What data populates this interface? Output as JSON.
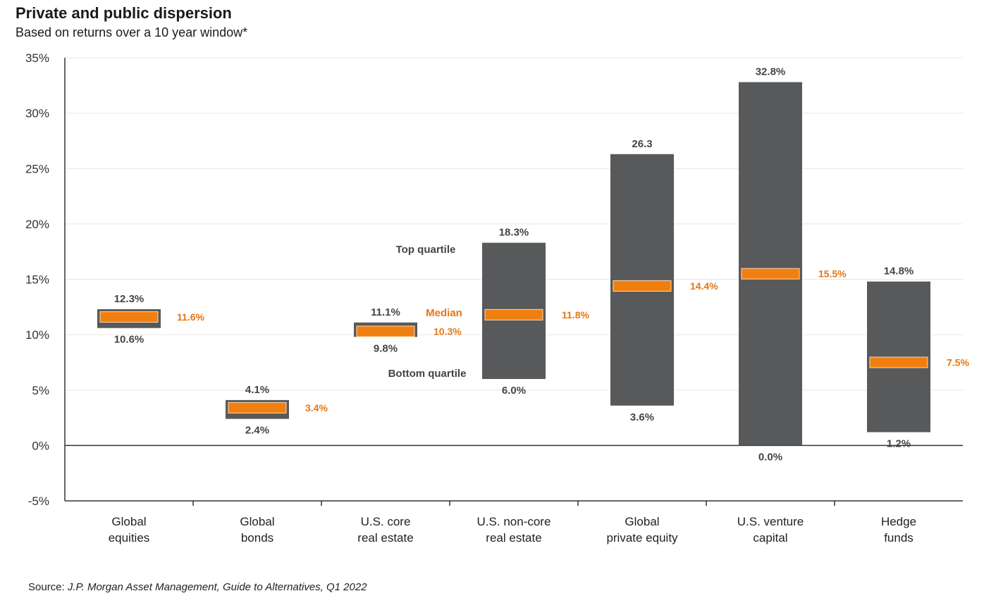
{
  "title": "Private and public dispersion",
  "subtitle": "Based on returns over a 10 year window*",
  "source_prefix": "Source: ",
  "source_text": "J.P. Morgan Asset Management, Guide to Alternatives, Q1 2022",
  "colors": {
    "bar": "#58595b",
    "median": "#f07f0f",
    "median_label": "#e87511",
    "axis": "#333333",
    "grid": "#e6e6e6"
  },
  "chart_data": {
    "type": "bar",
    "title": "Private and public dispersion",
    "subtitle": "Based on returns over a 10 year window*",
    "ylim": [
      -5,
      35
    ],
    "yticks": [
      35,
      30,
      25,
      20,
      15,
      10,
      5,
      0,
      -5
    ],
    "ytick_labels": [
      "35%",
      "30%",
      "25%",
      "20%",
      "15%",
      "10%",
      "5%",
      "0%",
      "-5%"
    ],
    "grid": true,
    "categories": [
      [
        "Global",
        "equities"
      ],
      [
        "Global",
        "bonds"
      ],
      [
        "U.S. core",
        "real estate"
      ],
      [
        "U.S. non-core",
        "real estate"
      ],
      [
        "Global",
        "private equity"
      ],
      [
        "U.S. venture",
        "capital"
      ],
      [
        "Hedge",
        "funds"
      ]
    ],
    "series": [
      {
        "name": "Top quartile",
        "values": [
          12.3,
          4.1,
          11.1,
          18.3,
          26.3,
          32.8,
          14.8
        ],
        "labels": [
          "12.3%",
          "4.1%",
          "11.1%",
          "18.3%",
          "26.3",
          "32.8%",
          "14.8%"
        ]
      },
      {
        "name": "Median",
        "values": [
          11.6,
          3.4,
          10.3,
          11.8,
          14.4,
          15.5,
          7.5
        ],
        "labels": [
          "11.6%",
          "3.4%",
          "10.3%",
          "11.8%",
          "14.4%",
          "15.5%",
          "7.5%"
        ]
      },
      {
        "name": "Bottom quartile",
        "values": [
          10.6,
          2.4,
          9.8,
          6.0,
          3.6,
          0.0,
          1.2
        ],
        "labels": [
          "10.6%",
          "2.4%",
          "9.8%",
          "6.0%",
          "3.6%",
          "0.0%",
          "1.2%"
        ]
      }
    ],
    "annotations": {
      "top": "Top quartile",
      "median": "Median",
      "bottom": "Bottom quartile"
    }
  }
}
